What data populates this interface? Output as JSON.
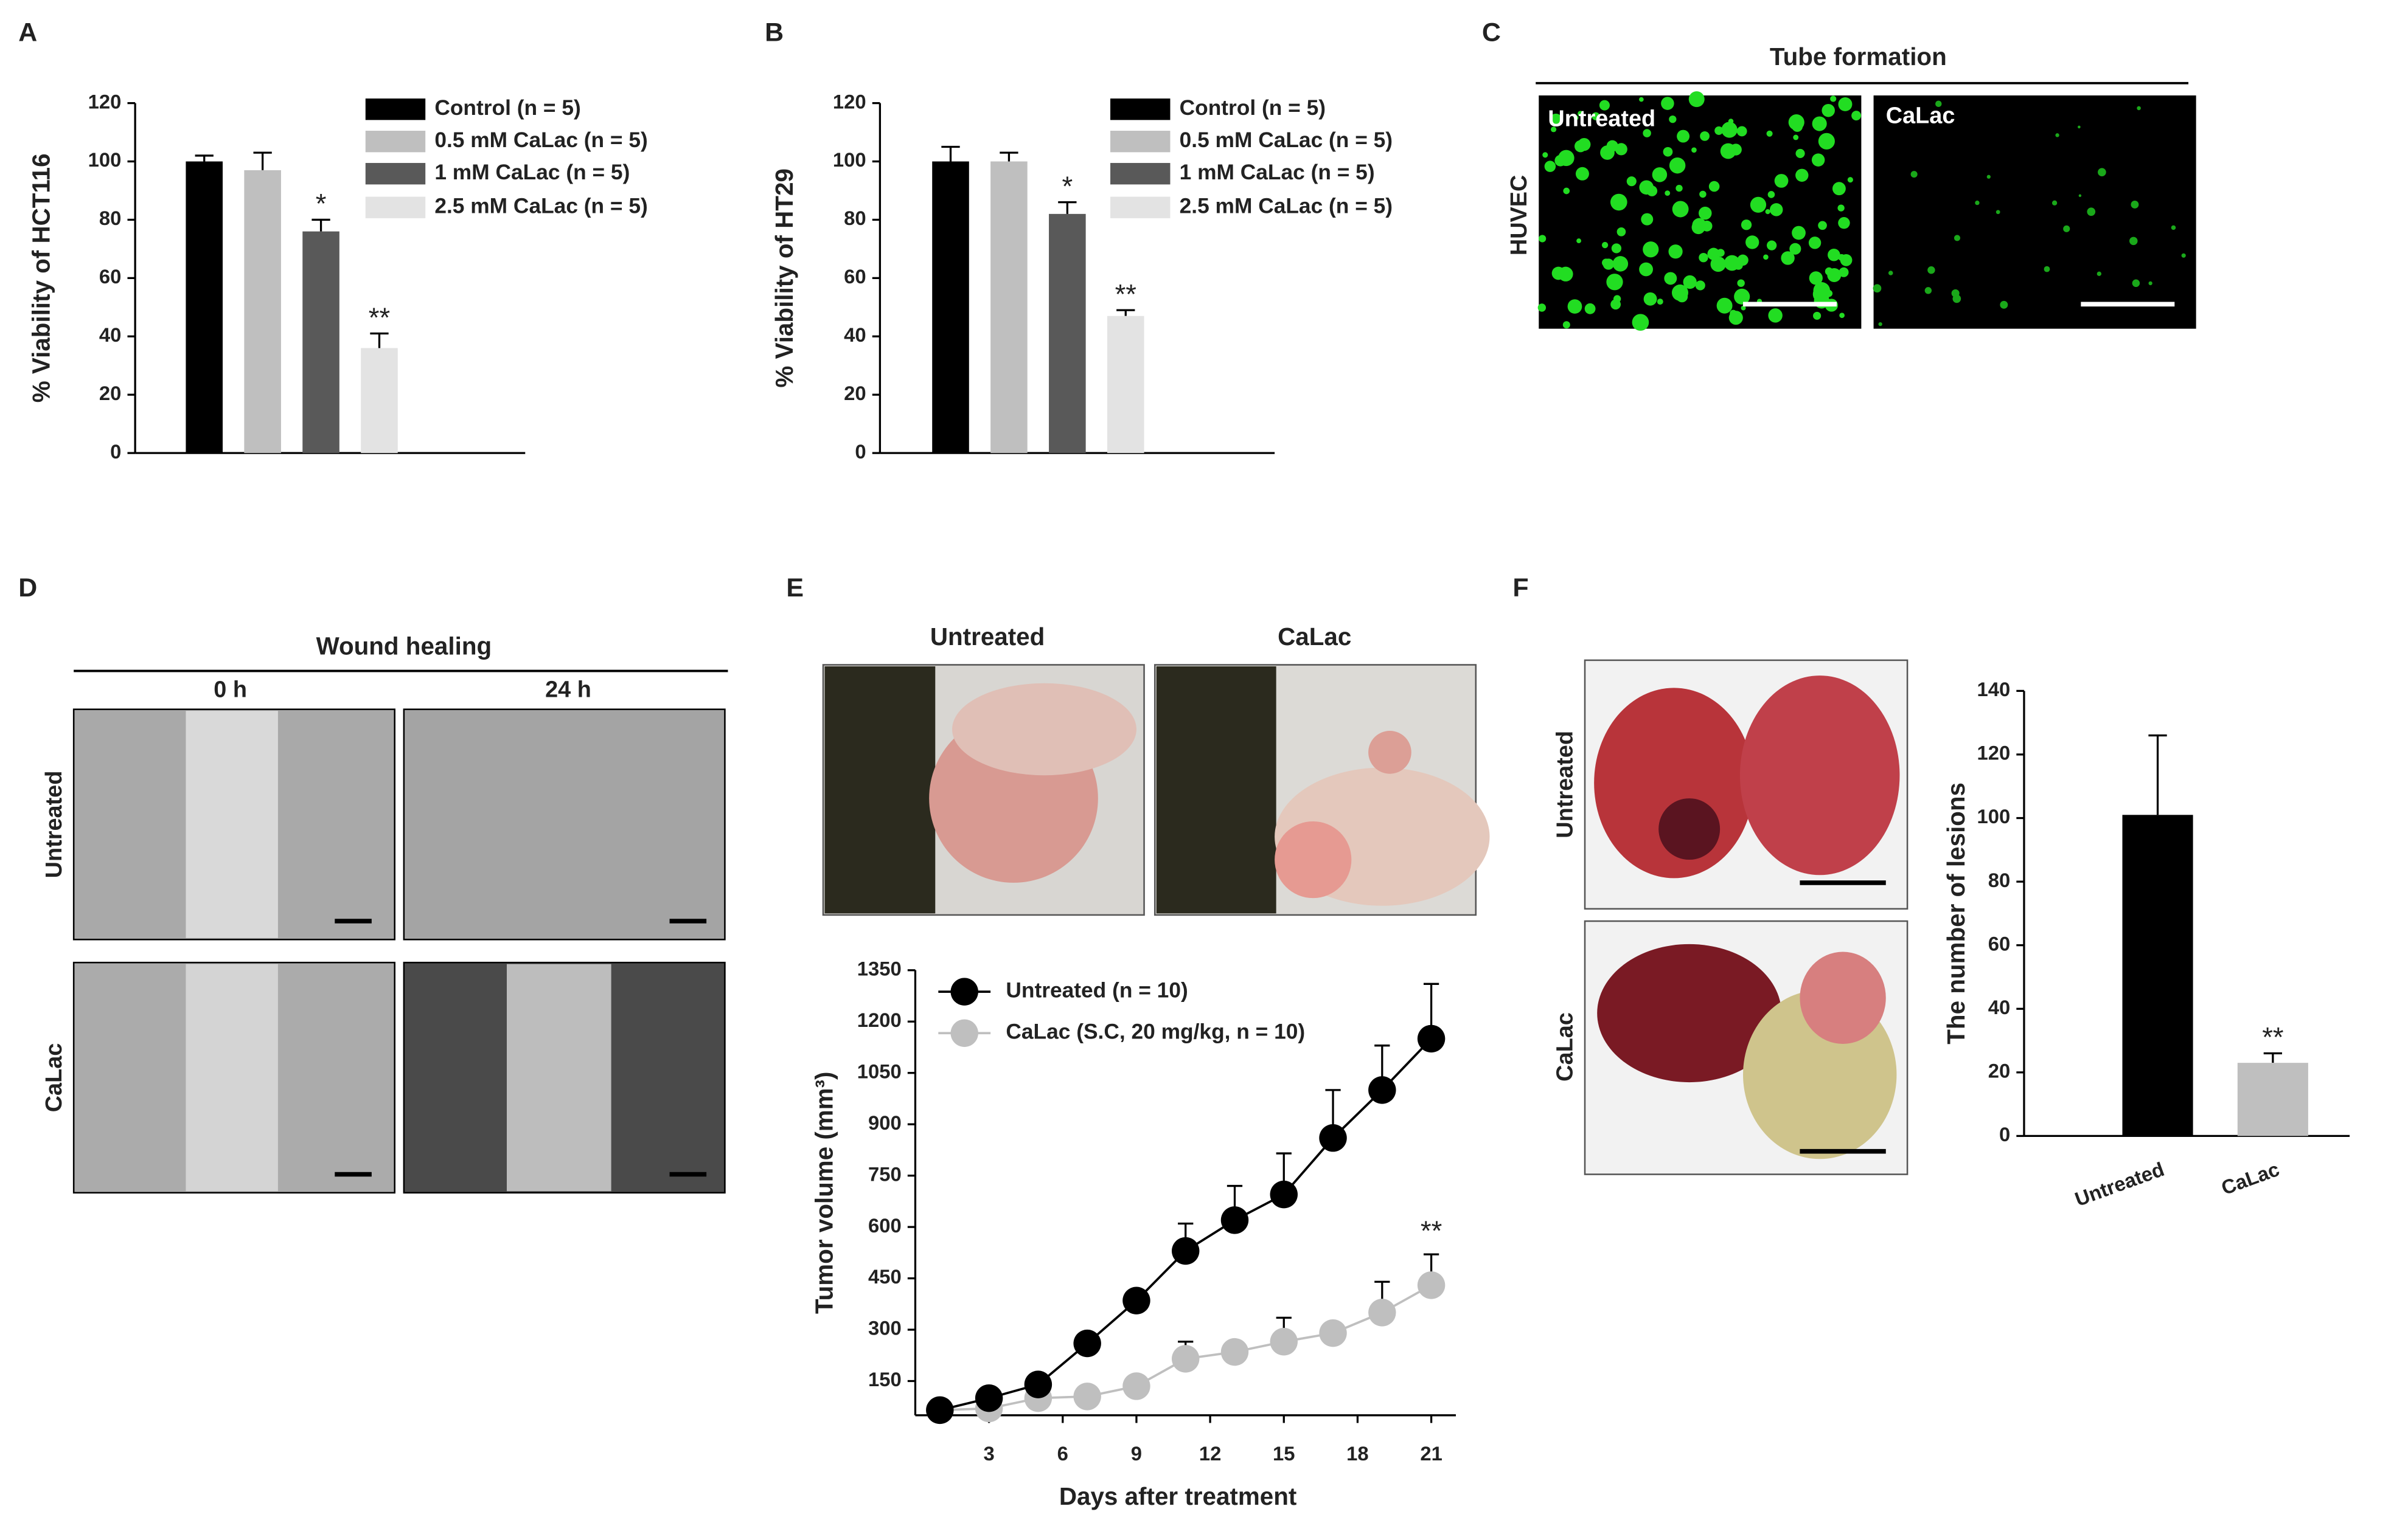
{
  "panel_letters": [
    "A",
    "B",
    "C",
    "D",
    "E",
    "F"
  ],
  "tube": {
    "title": "Tube formation",
    "row": "HUVEC",
    "columns": [
      "Untreated",
      "CaLac"
    ]
  },
  "wound": {
    "title": "Wound healing",
    "columns": [
      "0 h",
      "24 h"
    ],
    "rows": [
      "Untreated",
      "CaLac"
    ]
  },
  "tumor_photos": {
    "columns": [
      "Untreated",
      "CaLac"
    ]
  },
  "lung_photos": {
    "rows": [
      "Untreated",
      "CaLac"
    ]
  },
  "chart_data": [
    {
      "type": "bar",
      "ylabel": "% Viability of HCT116",
      "categories": [
        null
      ],
      "ylim": [
        0,
        120
      ],
      "yticks": [
        0,
        20,
        40,
        60,
        80,
        100,
        120
      ],
      "series": [
        {
          "name": "Control (n = 5)",
          "color": "#000000",
          "values": [
            100
          ],
          "errors": [
            2
          ]
        },
        {
          "name": "0.5 mM CaLac (n = 5)",
          "color": "#bfbfbf",
          "values": [
            97
          ],
          "errors": [
            6
          ]
        },
        {
          "name": "1 mM CaLac (n = 5)",
          "color": "#595959",
          "values": [
            76
          ],
          "errors": [
            4
          ],
          "significance": "*"
        },
        {
          "name": "2.5 mM CaLac (n = 5)",
          "color": "#e3e3e3",
          "values": [
            36
          ],
          "errors": [
            5
          ],
          "significance": "**"
        }
      ]
    },
    {
      "type": "bar",
      "ylabel": "% Viability of HT29",
      "categories": [
        null
      ],
      "ylim": [
        0,
        120
      ],
      "yticks": [
        0,
        20,
        40,
        60,
        80,
        100,
        120
      ],
      "series": [
        {
          "name": "Control (n = 5)",
          "color": "#000000",
          "values": [
            100
          ],
          "errors": [
            5
          ]
        },
        {
          "name": "0.5 mM CaLac (n = 5)",
          "color": "#bfbfbf",
          "values": [
            100
          ],
          "errors": [
            3
          ]
        },
        {
          "name": "1 mM CaLac (n = 5)",
          "color": "#595959",
          "values": [
            82
          ],
          "errors": [
            4
          ],
          "significance": "*"
        },
        {
          "name": "2.5 mM CaLac (n = 5)",
          "color": "#e3e3e3",
          "values": [
            47
          ],
          "errors": [
            2
          ],
          "significance": "**"
        }
      ]
    },
    {
      "type": "line",
      "xlabel": "Days after treatment",
      "ylabel": "Tumor volume (mm³)",
      "x": [
        1,
        3,
        5,
        7,
        9,
        11,
        13,
        15,
        17,
        19,
        21
      ],
      "xlim": [
        0,
        22
      ],
      "xticks": [
        3,
        6,
        9,
        12,
        15,
        18,
        21
      ],
      "ylim": [
        50,
        1350
      ],
      "yticks": [
        150,
        300,
        450,
        600,
        750,
        900,
        1050,
        1200,
        1350
      ],
      "series": [
        {
          "name": "Untreated (n = 10)",
          "color": "#000000",
          "values": [
            65,
            100,
            140,
            260,
            385,
            530,
            620,
            695,
            860,
            1000,
            1150
          ],
          "errors": [
            5,
            10,
            15,
            20,
            30,
            80,
            100,
            120,
            140,
            130,
            160
          ]
        },
        {
          "name": "CaLac (S.C, 20 mg/kg, n = 10)",
          "color": "#bfbfbf",
          "values": [
            65,
            70,
            100,
            105,
            135,
            215,
            235,
            265,
            290,
            350,
            430
          ],
          "errors": [
            5,
            5,
            10,
            10,
            15,
            50,
            20,
            70,
            30,
            90,
            90
          ],
          "significance": "**"
        }
      ]
    },
    {
      "type": "bar",
      "ylabel": "The number of  lesions",
      "categories": [
        "Untreated",
        "CaLac"
      ],
      "values": [
        101,
        23
      ],
      "errors": [
        25,
        3
      ],
      "colors": [
        "#000000",
        "#bfbfbf"
      ],
      "significance": [
        null,
        "**"
      ],
      "ylim": [
        0,
        140
      ],
      "yticks": [
        0,
        20,
        40,
        60,
        80,
        100,
        120,
        140
      ]
    }
  ]
}
